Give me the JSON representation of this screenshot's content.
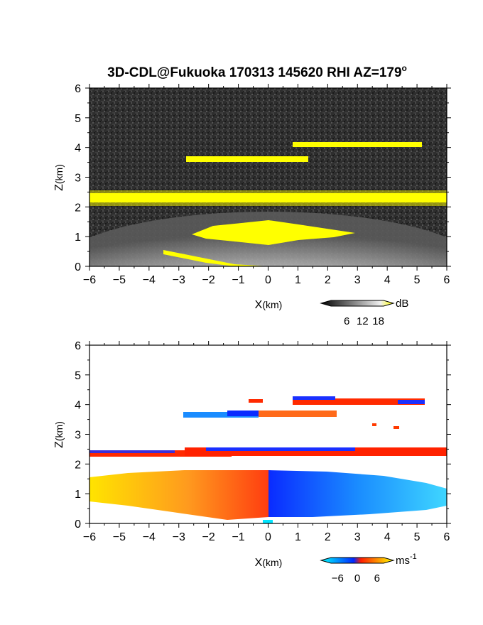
{
  "title_main": "3D-CDL@Fukuoka 170313 145620 RHI AZ=179",
  "title_sup": "o",
  "chart_data": [
    {
      "type": "heatmap",
      "name": "backscatter-intensity",
      "xlabel_main": "X",
      "xlabel_unit": "(km)",
      "ylabel_main": "Z",
      "ylabel_unit": "(km)",
      "xlim": [
        -6,
        6
      ],
      "ylim": [
        0,
        6
      ],
      "xticks": [
        "-6",
        "-5",
        "-4",
        "-3",
        "-2",
        "-1",
        "0",
        "1",
        "2",
        "3",
        "4",
        "5",
        "6"
      ],
      "yticks": [
        "0",
        "1",
        "2",
        "3",
        "4",
        "5",
        "6"
      ],
      "colorbar": {
        "unit": "dB",
        "ticks": [
          "6",
          "12",
          "18"
        ],
        "tick_values": [
          6,
          12,
          18
        ],
        "range": [
          0,
          20
        ],
        "colors": [
          "#000000",
          "#ffffff",
          "#ffff00"
        ]
      },
      "features": [
        {
          "kind": "layer",
          "x": [
            -6,
            6
          ],
          "z": [
            2.15,
            2.45
          ],
          "level": "yellow"
        },
        {
          "kind": "layer",
          "x": [
            0.8,
            5.2
          ],
          "z": [
            4.05,
            4.2
          ],
          "level": "yellow"
        },
        {
          "kind": "layer",
          "x": [
            -2.8,
            1.3
          ],
          "z": [
            3.55,
            3.7
          ],
          "level": "yellow"
        },
        {
          "kind": "echo",
          "x": [
            -2.5,
            4.5
          ],
          "z": [
            0.9,
            1.6
          ],
          "level": "yellow"
        },
        {
          "kind": "boundary-layer",
          "x": [
            -6,
            6
          ],
          "z": [
            0,
            1.9
          ],
          "level": "gray"
        }
      ]
    },
    {
      "type": "heatmap",
      "name": "doppler-velocity",
      "xlabel_main": "X",
      "xlabel_unit": "(km)",
      "ylabel_main": "Z",
      "ylabel_unit": "(km)",
      "xlim": [
        -6,
        6
      ],
      "ylim": [
        0,
        6
      ],
      "xticks": [
        "-6",
        "-5",
        "-4",
        "-3",
        "-2",
        "-1",
        "0",
        "1",
        "2",
        "3",
        "4",
        "5",
        "6"
      ],
      "yticks": [
        "0",
        "1",
        "2",
        "3",
        "4",
        "5",
        "6"
      ],
      "colorbar": {
        "unit": "ms",
        "unit_sup": "-1",
        "ticks": [
          "-6",
          "0",
          "6"
        ],
        "tick_values": [
          -6,
          0,
          6
        ],
        "range": [
          -8,
          8
        ],
        "colors": [
          "#00ffff",
          "#0033ff",
          "#ff2a00",
          "#ffff00"
        ]
      },
      "features": [
        {
          "kind": "layer",
          "x": [
            -6,
            -1
          ],
          "z": [
            2.2,
            2.4
          ],
          "sign": "mixed"
        },
        {
          "kind": "layer",
          "x": [
            -1,
            6
          ],
          "z": [
            2.15,
            2.5
          ],
          "sign": "positive"
        },
        {
          "kind": "layer",
          "x": [
            0.8,
            5.2
          ],
          "z": [
            4.05,
            4.2
          ],
          "sign": "mixed"
        },
        {
          "kind": "layer",
          "x": [
            -2.8,
            -0.7
          ],
          "z": [
            3.55,
            3.75
          ],
          "sign": "negative"
        },
        {
          "kind": "layer",
          "x": [
            -0.7,
            2.3
          ],
          "z": [
            3.6,
            3.8
          ],
          "sign": "positive"
        },
        {
          "kind": "boundary-layer",
          "x": [
            -6,
            0
          ],
          "z": [
            0.2,
            1.8
          ],
          "sign": "positive"
        },
        {
          "kind": "boundary-layer",
          "x": [
            0,
            6
          ],
          "z": [
            0.2,
            1.8
          ],
          "sign": "negative"
        }
      ]
    }
  ]
}
